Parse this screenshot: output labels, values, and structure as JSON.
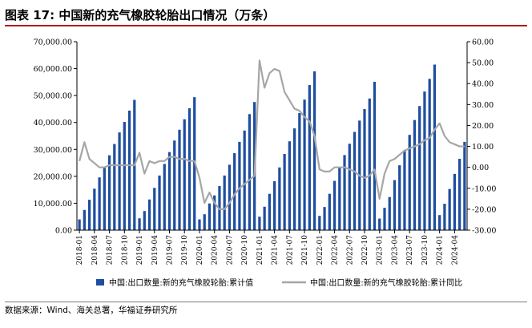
{
  "title": "图表 17:  中国新的充气橡胶轮胎出口情况（万条）",
  "source": "数据来源：Wind、海关总署，华福证券研究所",
  "colors": {
    "bar": "#1f4ea1",
    "line": "#a6a6a6",
    "title_rule": "#b01c1c",
    "axis": "#000000"
  },
  "chart_data": {
    "type": "bar",
    "title": "",
    "xlabel": "",
    "ylabel": "",
    "left_axis": {
      "min": 0,
      "max": 70000,
      "step": 10000,
      "tick_labels": [
        "0.00",
        "10,000.00",
        "20,000.00",
        "30,000.00",
        "40,000.00",
        "50,000.00",
        "60,000.00",
        "70,000.00"
      ]
    },
    "right_axis": {
      "min": -30,
      "max": 60,
      "step": 10,
      "tick_labels": [
        "-30.00",
        "-20.00",
        "-10.00",
        "0.00",
        "10.00",
        "20.00",
        "30.00",
        "40.00",
        "50.00",
        "60.00"
      ]
    },
    "x_tick_labels": [
      "2018-01",
      "2018-04",
      "2018-07",
      "2018-10",
      "2019-01",
      "2019-04",
      "2019-07",
      "2019-10",
      "2020-01",
      "2020-04",
      "2020-07",
      "2020-10",
      "2021-01",
      "2021-04",
      "2021-07",
      "2021-10",
      "2022-01",
      "2022-04",
      "2022-07",
      "2022-10",
      "2023-01",
      "2023-04",
      "2023-07",
      "2023-10",
      "2024-01",
      "2024-04"
    ],
    "grid": false,
    "legend_position": "bottom",
    "categories": [
      "2018-01",
      "2018-02",
      "2018-03",
      "2018-04",
      "2018-05",
      "2018-06",
      "2018-07",
      "2018-08",
      "2018-09",
      "2018-10",
      "2018-11",
      "2018-12",
      "2019-01",
      "2019-02",
      "2019-03",
      "2019-04",
      "2019-05",
      "2019-06",
      "2019-07",
      "2019-08",
      "2019-09",
      "2019-10",
      "2019-11",
      "2019-12",
      "2020-01",
      "2020-02",
      "2020-03",
      "2020-04",
      "2020-05",
      "2020-06",
      "2020-07",
      "2020-08",
      "2020-09",
      "2020-10",
      "2020-11",
      "2020-12",
      "2021-01",
      "2021-02",
      "2021-03",
      "2021-04",
      "2021-05",
      "2021-06",
      "2021-07",
      "2021-08",
      "2021-09",
      "2021-10",
      "2021-11",
      "2021-12",
      "2022-01",
      "2022-02",
      "2022-03",
      "2022-04",
      "2022-05",
      "2022-06",
      "2022-07",
      "2022-08",
      "2022-09",
      "2022-10",
      "2022-11",
      "2022-12",
      "2023-01",
      "2023-02",
      "2023-03",
      "2023-04",
      "2023-05",
      "2023-06",
      "2023-07",
      "2023-08",
      "2023-09",
      "2023-10",
      "2023-11",
      "2023-12",
      "2024-01",
      "2024-02",
      "2024-03",
      "2024-04",
      "2024-05",
      "2024-06"
    ],
    "series": [
      {
        "name": "中国:出口数量:新的充气橡胶轮胎:累计值",
        "type": "bar",
        "axis": "left",
        "values": [
          4000,
          7500,
          11300,
          15400,
          19600,
          23600,
          27800,
          32000,
          36300,
          40200,
          44400,
          48400,
          4400,
          7100,
          11400,
          15700,
          20300,
          24600,
          29000,
          33300,
          37300,
          41200,
          45300,
          49400,
          4000,
          5900,
          9900,
          12900,
          16400,
          20300,
          24300,
          28600,
          32800,
          37000,
          43100,
          47600,
          5000,
          8700,
          13500,
          18200,
          23300,
          28300,
          33000,
          37800,
          43500,
          48500,
          53900,
          59000,
          5300,
          8600,
          13500,
          18300,
          23300,
          27900,
          32100,
          36500,
          40700,
          45000,
          48900,
          55100,
          4300,
          8300,
          12300,
          18600,
          24100,
          29700,
          35400,
          40900,
          46100,
          51500,
          56200,
          61500,
          5600,
          9800,
          15300,
          20900,
          26500,
          32800
        ]
      },
      {
        "name": "中国:出口数量:新的充气橡胶轮胎:累计同比",
        "type": "line",
        "axis": "right",
        "values": [
          3,
          12,
          4,
          2,
          0,
          0,
          1,
          1,
          1,
          1,
          1,
          1,
          7,
          -3,
          3,
          2,
          3,
          3,
          5,
          5,
          4,
          4,
          3,
          3,
          -5,
          -17,
          -12,
          -17,
          -20,
          -20,
          -17,
          -13,
          -10,
          -8,
          -6,
          -4,
          51,
          38,
          45,
          47,
          46,
          36,
          32,
          28,
          27,
          24,
          22,
          15,
          -1,
          -2,
          -2,
          0,
          0,
          0,
          -1,
          -2,
          -4,
          -5,
          -4,
          -1,
          -15,
          -3,
          3,
          4,
          6,
          8,
          9,
          10,
          11,
          13,
          14,
          18,
          21,
          15,
          12,
          11,
          10,
          10
        ]
      }
    ]
  }
}
